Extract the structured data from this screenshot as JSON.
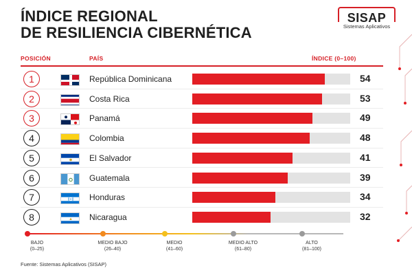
{
  "title_lines": [
    "ÍNDICE REGIONAL",
    "DE RESILIENCIA CIBERNÉTICA"
  ],
  "logo": {
    "name": "SISAP",
    "tagline": "Sistemas Aplicativos"
  },
  "columns": {
    "position": "POSICIÓN",
    "country": "PAÍS",
    "index": "ÍNDICE (0–100)"
  },
  "colors": {
    "accent": "#d61f26",
    "bar": "#e31e24",
    "track": "#e3e3e3"
  },
  "chart_data": {
    "type": "bar",
    "orientation": "horizontal",
    "x_range": [
      0,
      100
    ],
    "categories": [
      "República Dominicana",
      "Costa Rica",
      "Panamá",
      "Colombia",
      "El Salvador",
      "Guatemala",
      "Honduras",
      "Nicaragua"
    ],
    "ranks": [
      "1",
      "2",
      "3",
      "4",
      "5",
      "6",
      "7",
      "8"
    ],
    "values": [
      54,
      53,
      49,
      48,
      41,
      39,
      34,
      32
    ],
    "flags": [
      "flag-dominican-republic",
      "flag-costa-rica",
      "flag-panama",
      "flag-colombia",
      "flag-el-salvador",
      "flag-guatemala",
      "flag-honduras",
      "flag-nicaragua"
    ]
  },
  "scale": [
    {
      "name": "BAJO",
      "range": "(0–25)",
      "color": "#e31e24"
    },
    {
      "name": "MEDIO BAJO",
      "range": "(26–40)",
      "color": "#f28a1e"
    },
    {
      "name": "MEDIO",
      "range": "(41–60)",
      "color": "#f4c01c"
    },
    {
      "name": "MEDIO ALTO",
      "range": "(61–80)",
      "color": "#9a9a9a"
    },
    {
      "name": "ALTO",
      "range": "(81–100)",
      "color": "#9a9a9a"
    }
  ],
  "source": "Fuente: Sistemas Aplicativos (SISAP)"
}
